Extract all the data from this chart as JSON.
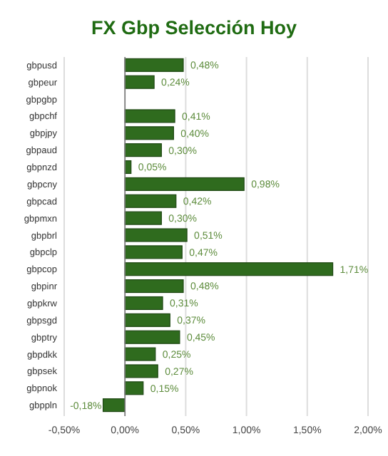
{
  "chart_data": {
    "type": "bar",
    "orientation": "horizontal",
    "title": "FX Gbp Selección Hoy",
    "categories": [
      "gbpusd",
      "gbpeur",
      "gbpgbp",
      "gbpchf",
      "gbpjpy",
      "gbpaud",
      "gbpnzd",
      "gbpcny",
      "gbpcad",
      "gbpmxn",
      "gbpbrl",
      "gbpclp",
      "gbpcop",
      "gbpinr",
      "gbpkrw",
      "gbpsgd",
      "gbptry",
      "gbpdkk",
      "gbpsek",
      "gbpnok",
      "gbppln"
    ],
    "values": [
      0.48,
      0.24,
      null,
      0.41,
      0.4,
      0.3,
      0.05,
      0.98,
      0.42,
      0.3,
      0.51,
      0.47,
      1.71,
      0.48,
      0.31,
      0.37,
      0.45,
      0.25,
      0.27,
      0.15,
      -0.18
    ],
    "value_labels": [
      "0,48%",
      "0,24%",
      null,
      "0,41%",
      "0,40%",
      "0,30%",
      "0,05%",
      "0,98%",
      "0,42%",
      "0,30%",
      "0,51%",
      "0,47%",
      "1,71%",
      "0,48%",
      "0,31%",
      "0,37%",
      "0,45%",
      "0,25%",
      "0,27%",
      "0,15%",
      "-0,18%"
    ],
    "color": "#2f6b1e",
    "xlim": [
      -0.5,
      2.0
    ],
    "xticks": [
      {
        "value": -0.5,
        "label": "-0,50%"
      },
      {
        "value": 0,
        "label": "0,00%"
      },
      {
        "value": 0.5,
        "label": "0,50%"
      },
      {
        "value": 1.0,
        "label": "1,00%"
      },
      {
        "value": 1.5,
        "label": "1,50%"
      },
      {
        "value": 2.0,
        "label": "2,00%"
      }
    ],
    "grid": "x"
  }
}
